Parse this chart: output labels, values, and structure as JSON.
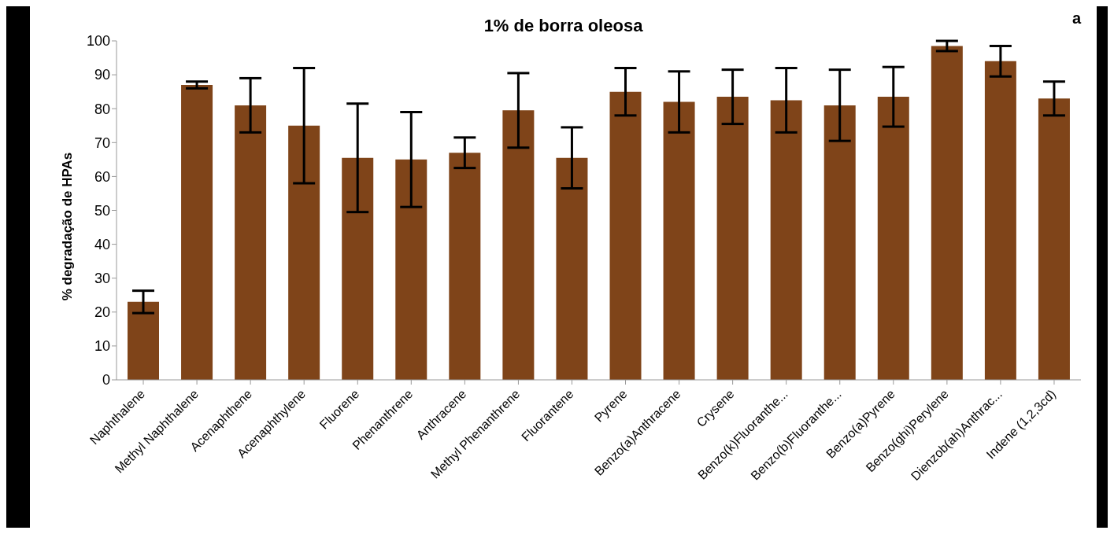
{
  "chart_data": {
    "type": "bar",
    "title": "1% de borra oleosa",
    "ylabel": "% degradação de HPAs",
    "annotations": [
      "a"
    ],
    "categories": [
      "Naphthalene",
      "Methyl Naphthalene",
      "Acenaphthene",
      "Acenaphthylene",
      "Fluorene",
      "Phenanthrene",
      "Anthracene",
      "Methyl Phenanthrene",
      "Fluorantene",
      "Pyrene",
      "Benzo(a)Anthracene",
      "Crysene",
      "Benzo(k)Fluoranthe...",
      "Benzo(b)Fluoranthe...",
      "Benzo(a)Pyrene",
      "Benzo(ghi)Perylene",
      "Dienzob(ah)Anthrac...",
      "Indene (1,2,3cd)"
    ],
    "values": [
      23,
      87,
      81,
      75,
      65.5,
      65,
      67,
      79.5,
      65.5,
      85,
      82,
      83.5,
      82.5,
      81,
      83.5,
      98.5,
      94,
      83
    ],
    "errors": [
      3.3,
      1,
      8,
      17,
      16,
      14,
      4.5,
      11,
      9,
      7,
      9,
      8,
      9.5,
      10.5,
      8.8,
      1.5,
      4.5,
      5
    ],
    "color": "#7f4419",
    "ylim": [
      0,
      100
    ],
    "yticks": [
      0,
      10,
      20,
      30,
      40,
      50,
      60,
      70,
      80,
      90,
      100
    ],
    "grid": false,
    "legend": false
  }
}
